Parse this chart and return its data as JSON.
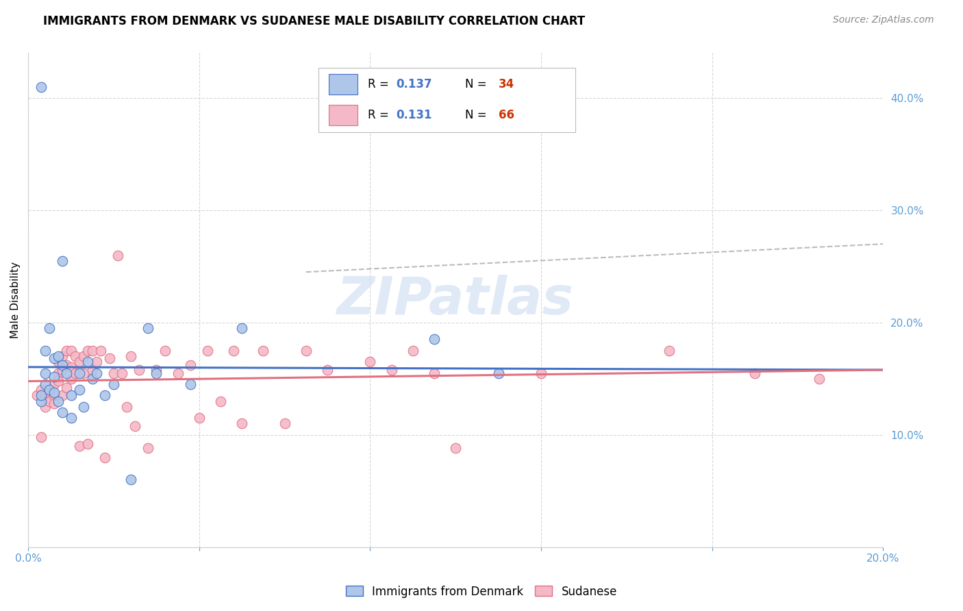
{
  "title": "IMMIGRANTS FROM DENMARK VS SUDANESE MALE DISABILITY CORRELATION CHART",
  "source": "Source: ZipAtlas.com",
  "ylabel": "Male Disability",
  "xlim": [
    0.0,
    0.2
  ],
  "ylim": [
    0.0,
    0.44
  ],
  "denmark_color": "#aec6e8",
  "sudanese_color": "#f4b8c8",
  "denmark_line_color": "#4472c4",
  "sudanese_line_color": "#e07080",
  "dashed_line_color": "#aaaaaa",
  "watermark_text": "ZIPatlas",
  "watermark_color": "#c8d8f0",
  "denmark_x": [
    0.003,
    0.003,
    0.003,
    0.004,
    0.004,
    0.004,
    0.005,
    0.005,
    0.006,
    0.006,
    0.006,
    0.007,
    0.007,
    0.008,
    0.008,
    0.008,
    0.009,
    0.01,
    0.01,
    0.012,
    0.012,
    0.013,
    0.014,
    0.015,
    0.016,
    0.018,
    0.02,
    0.024,
    0.028,
    0.03,
    0.038,
    0.05,
    0.095,
    0.11
  ],
  "denmark_y": [
    0.41,
    0.13,
    0.135,
    0.175,
    0.155,
    0.145,
    0.195,
    0.14,
    0.168,
    0.152,
    0.138,
    0.17,
    0.13,
    0.255,
    0.162,
    0.12,
    0.155,
    0.135,
    0.115,
    0.155,
    0.14,
    0.125,
    0.165,
    0.15,
    0.155,
    0.135,
    0.145,
    0.06,
    0.195,
    0.155,
    0.145,
    0.195,
    0.185,
    0.155
  ],
  "sudanese_x": [
    0.002,
    0.003,
    0.003,
    0.004,
    0.004,
    0.005,
    0.005,
    0.006,
    0.006,
    0.006,
    0.007,
    0.007,
    0.007,
    0.008,
    0.008,
    0.008,
    0.009,
    0.009,
    0.009,
    0.01,
    0.01,
    0.01,
    0.011,
    0.011,
    0.012,
    0.012,
    0.013,
    0.013,
    0.014,
    0.014,
    0.015,
    0.015,
    0.016,
    0.017,
    0.018,
    0.019,
    0.02,
    0.021,
    0.022,
    0.023,
    0.024,
    0.025,
    0.026,
    0.028,
    0.03,
    0.032,
    0.035,
    0.038,
    0.04,
    0.042,
    0.045,
    0.048,
    0.05,
    0.055,
    0.06,
    0.065,
    0.07,
    0.08,
    0.085,
    0.09,
    0.095,
    0.1,
    0.12,
    0.15,
    0.17,
    0.185
  ],
  "sudanese_y": [
    0.135,
    0.14,
    0.098,
    0.135,
    0.125,
    0.138,
    0.13,
    0.145,
    0.135,
    0.128,
    0.165,
    0.155,
    0.148,
    0.17,
    0.158,
    0.135,
    0.175,
    0.162,
    0.142,
    0.175,
    0.16,
    0.15,
    0.17,
    0.155,
    0.165,
    0.09,
    0.17,
    0.155,
    0.175,
    0.092,
    0.175,
    0.158,
    0.165,
    0.175,
    0.08,
    0.168,
    0.155,
    0.26,
    0.155,
    0.125,
    0.17,
    0.108,
    0.158,
    0.088,
    0.158,
    0.175,
    0.155,
    0.162,
    0.115,
    0.175,
    0.13,
    0.175,
    0.11,
    0.175,
    0.11,
    0.175,
    0.158,
    0.165,
    0.158,
    0.175,
    0.155,
    0.088,
    0.155,
    0.175,
    0.155,
    0.15
  ],
  "legend_text_color": "#4472c4",
  "legend_N_color": "#e05020",
  "title_fontsize": 12,
  "source_fontsize": 10,
  "axis_label_color": "#5b9bd5",
  "axis_tick_fontsize": 11
}
